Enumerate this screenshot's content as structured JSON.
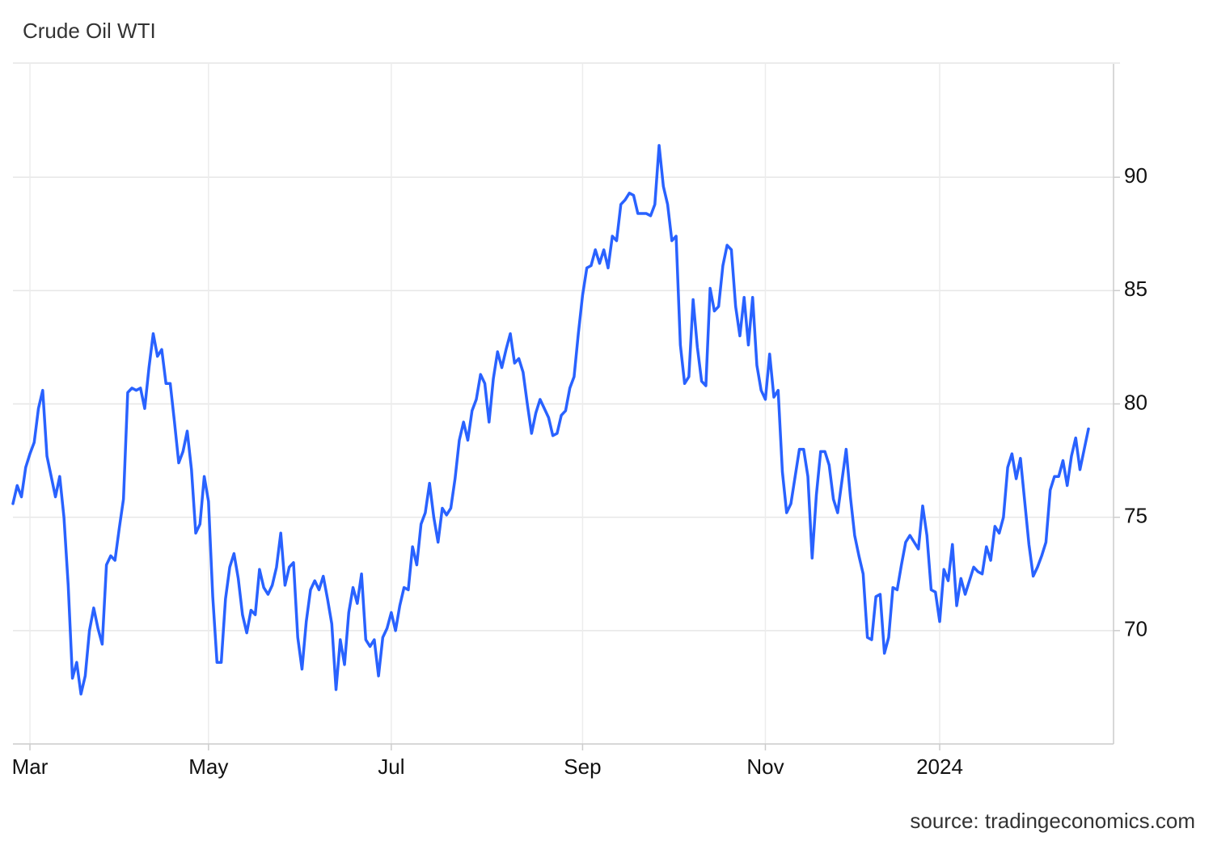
{
  "chart_data": {
    "type": "line",
    "title": "Crude Oil WTI",
    "source": "source: tradingeconomics.com",
    "color": "#2962ff",
    "grid": true,
    "yaxis_side": "right",
    "ylim": [
      65,
      95
    ],
    "yticks": [
      70,
      75,
      80,
      85,
      90
    ],
    "categories": [
      null,
      null,
      null,
      null,
      "Mar",
      null,
      null,
      null,
      null,
      null,
      null,
      null,
      null,
      null,
      null,
      null,
      null,
      null,
      null,
      null,
      null,
      null,
      null,
      null,
      null,
      null,
      null,
      null,
      null,
      null,
      null,
      null,
      null,
      null,
      null,
      null,
      null,
      null,
      null,
      null,
      null,
      null,
      null,
      null,
      null,
      null,
      "May",
      null,
      null,
      null,
      null,
      null,
      null,
      null,
      null,
      null,
      null,
      null,
      null,
      null,
      null,
      null,
      null,
      null,
      null,
      null,
      null,
      null,
      null,
      null,
      null,
      null,
      null,
      null,
      null,
      null,
      null,
      null,
      null,
      null,
      null,
      null,
      null,
      null,
      null,
      null,
      null,
      null,
      null,
      "Jul",
      null,
      null,
      null,
      null,
      null,
      null,
      null,
      null,
      null,
      null,
      null,
      null,
      null,
      null,
      null,
      null,
      null,
      null,
      null,
      null,
      null,
      null,
      null,
      null,
      null,
      null,
      null,
      null,
      null,
      null,
      null,
      null,
      null,
      null,
      null,
      null,
      null,
      null,
      null,
      null,
      null,
      null,
      null,
      null,
      "Sep",
      null,
      null,
      null,
      null,
      null,
      null,
      null,
      null,
      null,
      null,
      null,
      null,
      null,
      null,
      null,
      null,
      null,
      null,
      null,
      null,
      null,
      null,
      null,
      null,
      null,
      null,
      null,
      null,
      null,
      null,
      null,
      null,
      null,
      null,
      null,
      null,
      null,
      null,
      null,
      null,
      null,
      null,
      "Nov",
      null,
      null,
      null,
      null,
      null,
      null,
      null,
      null,
      null,
      null,
      null,
      null,
      null,
      null,
      null,
      null,
      null,
      null,
      null,
      null,
      null,
      null,
      null,
      null,
      null,
      null,
      null,
      null,
      null,
      null,
      null,
      null,
      null,
      null,
      null,
      null,
      null,
      null,
      null,
      null,
      "2024",
      null,
      null,
      null,
      null,
      null,
      null,
      null,
      null,
      null,
      null,
      null,
      null,
      null,
      null,
      null,
      null,
      null,
      null,
      null,
      null,
      null,
      null,
      null,
      null,
      null,
      null,
      null,
      null,
      null,
      null,
      null,
      null,
      null,
      null,
      null
    ],
    "values": [
      75.6,
      76.4,
      75.9,
      77.2,
      77.8,
      78.3,
      79.8,
      80.6,
      77.7,
      76.8,
      75.9,
      76.8,
      75,
      72,
      67.9,
      68.6,
      67.2,
      68,
      70,
      71,
      70.1,
      69.4,
      72.9,
      73.3,
      73.1,
      74.5,
      75.8,
      80.5,
      80.7,
      80.6,
      80.7,
      79.8,
      81.6,
      83.1,
      82.1,
      82.4,
      80.9,
      80.9,
      79.2,
      77.4,
      77.9,
      78.8,
      77.1,
      74.3,
      74.7,
      76.8,
      75.7,
      71.5,
      68.6,
      68.6,
      71.4,
      72.8,
      73.4,
      72.3,
      70.7,
      69.9,
      70.9,
      70.7,
      72.7,
      71.9,
      71.6,
      72,
      72.8,
      74.3,
      72,
      72.8,
      73,
      69.7,
      68.3,
      70.4,
      71.8,
      72.2,
      71.8,
      72.4,
      71.4,
      70.3,
      67.4,
      69.6,
      68.5,
      70.8,
      71.9,
      71.2,
      72.5,
      69.6,
      69.3,
      69.6,
      68,
      69.7,
      70.1,
      70.8,
      70,
      71.1,
      71.9,
      71.8,
      73.7,
      72.9,
      74.7,
      75.2,
      76.5,
      75,
      73.9,
      75.4,
      75.1,
      75.4,
      76.7,
      78.4,
      79.2,
      78.4,
      79.7,
      80.2,
      81.3,
      80.9,
      79.2,
      81.1,
      82.3,
      81.6,
      82.4,
      83.1,
      81.8,
      82,
      81.4,
      80,
      78.7,
      79.6,
      80.2,
      79.8,
      79.4,
      78.6,
      78.7,
      79.5,
      79.7,
      80.7,
      81.2,
      83.1,
      84.8,
      86,
      86.1,
      86.8,
      86.2,
      86.8,
      86,
      87.4,
      87.2,
      88.8,
      89,
      89.3,
      89.2,
      88.4,
      88.4,
      88.4,
      88.3,
      88.8,
      91.4,
      89.6,
      88.8,
      87.2,
      87.4,
      82.6,
      80.9,
      81.2,
      84.6,
      82.5,
      81,
      80.8,
      85.1,
      84.1,
      84.3,
      86.1,
      87,
      86.8,
      84.3,
      83,
      84.7,
      82.6,
      84.7,
      81.7,
      80.6,
      80.2,
      82.2,
      80.3,
      80.6,
      77,
      75.2,
      75.6,
      76.8,
      78,
      78,
      76.8,
      73.2,
      76,
      77.9,
      77.9,
      77.3,
      75.8,
      75.2,
      76.6,
      78,
      75.9,
      74.2,
      73.3,
      72.5,
      69.7,
      69.6,
      71.5,
      71.6,
      69,
      69.7,
      71.9,
      71.8,
      72.9,
      73.9,
      74.2,
      73.9,
      73.6,
      75.5,
      74.2,
      71.8,
      71.7,
      70.4,
      72.7,
      72.2,
      73.8,
      71.1,
      72.3,
      71.6,
      72.2,
      72.8,
      72.6,
      72.5,
      73.7,
      73.1,
      74.6,
      74.3,
      75,
      77.2,
      77.8,
      76.7,
      77.6,
      75.7,
      73.8,
      72.4,
      72.8,
      73.3,
      73.9,
      76.2,
      76.8,
      76.8,
      77.5,
      76.4,
      77.7,
      78.5,
      77.1,
      78,
      78.9
    ]
  }
}
